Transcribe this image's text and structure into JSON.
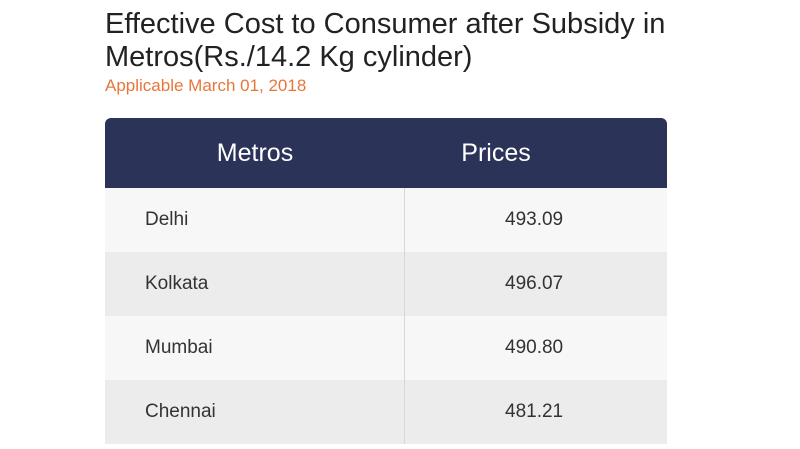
{
  "header": {
    "title": "Effective Cost to Consumer after Subsidy in Metros(Rs./14.2 Kg cylinder)",
    "subtitle": "Applicable March 01, 2018"
  },
  "table": {
    "columns": [
      "Metros",
      "Prices"
    ],
    "rows": [
      [
        "Delhi",
        "493.09"
      ],
      [
        "Kolkata",
        "496.07"
      ],
      [
        "Mumbai",
        "490.80"
      ],
      [
        "Chennai",
        "481.21"
      ]
    ]
  }
}
